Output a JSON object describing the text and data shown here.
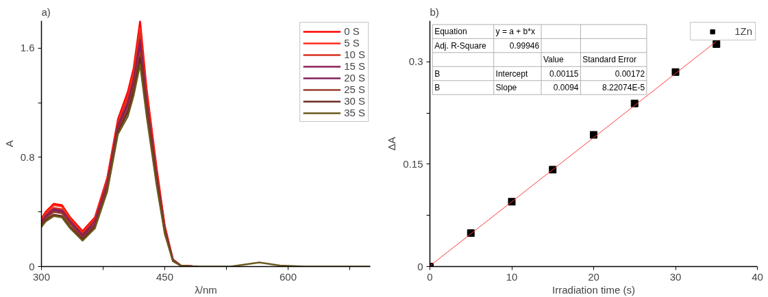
{
  "chart_data": [
    {
      "type": "line",
      "title": "a)",
      "xlabel": "λ/nm",
      "ylabel": "A",
      "x": [
        300,
        305,
        315,
        325,
        335,
        350,
        365,
        380,
        393,
        405,
        412,
        420,
        428,
        440,
        450,
        460,
        470,
        490,
        530,
        565,
        590,
        620,
        700
      ],
      "series": [
        {
          "name": "0 S",
          "color": "#ff0000",
          "values": [
            0.35,
            0.4,
            0.46,
            0.45,
            0.36,
            0.26,
            0.36,
            0.65,
            1.08,
            1.28,
            1.45,
            1.8,
            1.3,
            0.73,
            0.3,
            0.05,
            0.005,
            0,
            null,
            null,
            null,
            null,
            null
          ]
        },
        {
          "name": "5 S",
          "color": "#ff2a1a",
          "values": [
            0.34,
            0.39,
            0.45,
            0.44,
            0.35,
            0.25,
            0.35,
            0.64,
            1.06,
            1.25,
            1.42,
            1.75,
            1.27,
            0.71,
            0.29,
            0.05,
            0.005,
            0,
            null,
            null,
            null,
            null,
            null
          ]
        },
        {
          "name": "10 S",
          "color": "#d8301a",
          "values": [
            0.33,
            0.38,
            0.43,
            0.42,
            0.34,
            0.24,
            0.34,
            0.62,
            1.05,
            1.23,
            1.39,
            1.71,
            1.24,
            0.69,
            0.28,
            0.05,
            0.005,
            0,
            null,
            null,
            null,
            null,
            null
          ]
        },
        {
          "name": "15 S",
          "color": "#8e1f55",
          "values": [
            0.32,
            0.37,
            0.42,
            0.41,
            0.33,
            0.23,
            0.33,
            0.61,
            1.03,
            1.2,
            1.36,
            1.66,
            1.21,
            0.67,
            0.27,
            0.05,
            0.005,
            0,
            null,
            null,
            null,
            null,
            null
          ]
        },
        {
          "name": "20 S",
          "color": "#82205f",
          "values": [
            0.32,
            0.36,
            0.41,
            0.4,
            0.32,
            0.22,
            0.31,
            0.59,
            1.02,
            1.18,
            1.34,
            1.62,
            1.19,
            0.66,
            0.27,
            0.04,
            0.005,
            0,
            null,
            null,
            null,
            null,
            null
          ]
        },
        {
          "name": "25 S",
          "color": "#9a3d2a",
          "values": [
            0.31,
            0.35,
            0.4,
            0.39,
            0.31,
            0.21,
            0.3,
            0.58,
            1.0,
            1.15,
            1.31,
            1.57,
            1.16,
            0.64,
            0.26,
            0.04,
            0.005,
            0,
            null,
            null,
            null,
            null,
            null
          ]
        },
        {
          "name": "30 S",
          "color": "#6a2a1a",
          "values": [
            0.3,
            0.34,
            0.38,
            0.37,
            0.29,
            0.2,
            0.29,
            0.56,
            0.99,
            1.13,
            1.28,
            1.53,
            1.13,
            0.62,
            0.25,
            0.04,
            0.005,
            0,
            null,
            null,
            null,
            null,
            null
          ]
        },
        {
          "name": "35 S",
          "color": "#6b5a1c",
          "values": [
            0.29,
            0.33,
            0.37,
            0.36,
            0.28,
            0.19,
            0.28,
            0.55,
            0.97,
            1.1,
            1.25,
            1.48,
            1.1,
            0.6,
            0.24,
            0.04,
            0.005,
            0,
            0,
            0.03,
            0.008,
            0,
            0
          ]
        }
      ],
      "xlim": [
        300,
        700
      ],
      "ylim": [
        0,
        1.8
      ],
      "xticks": [
        300,
        {
          "value": 375,
          "label": null
        },
        450,
        {
          "value": 525,
          "label": null
        },
        600,
        {
          "value": 675,
          "label": null
        }
      ],
      "yticks": [
        0,
        {
          "value": 0.4,
          "label": null
        },
        0.8,
        {
          "value": 1.2,
          "label": null
        },
        1.6
      ],
      "grid": false,
      "legend": "top right",
      "marker": "none",
      "line_style": "solid"
    },
    {
      "type": "scatter",
      "title": "b)",
      "xlabel": "Irradiation time (s)",
      "ylabel": "ΔA",
      "series": [
        {
          "name": "1Zn",
          "type": "scatter",
          "marker": "square",
          "color": "#000000",
          "x": [
            0,
            5,
            10,
            15,
            20,
            25,
            30,
            35
          ],
          "values": [
            0.0,
            0.049,
            0.095,
            0.142,
            0.193,
            0.239,
            0.285,
            0.326
          ]
        },
        {
          "type": "line",
          "marker": "none",
          "color": "#ff3b3b",
          "x": [
            0,
            35
          ],
          "values": [
            0.001,
            0.33
          ]
        }
      ],
      "annotations": [
        "Equation",
        "y = a + b*x",
        "Adj. R-Square",
        "0.99946",
        "Value",
        "Standard Error",
        "B",
        "Intercept",
        "0.00115",
        "0.00172",
        "B",
        "Slope",
        "0.0094",
        "8.22074E-5"
      ],
      "xlim": [
        0,
        40
      ],
      "ylim": [
        0,
        0.36
      ],
      "xticks": [
        0,
        10,
        20,
        30,
        40
      ],
      "yticks": [
        0,
        {
          "value": 0.075,
          "label": null
        },
        0.15,
        {
          "value": 0.225,
          "label": null
        },
        0.3
      ],
      "grid": false,
      "legend": "top right"
    }
  ]
}
